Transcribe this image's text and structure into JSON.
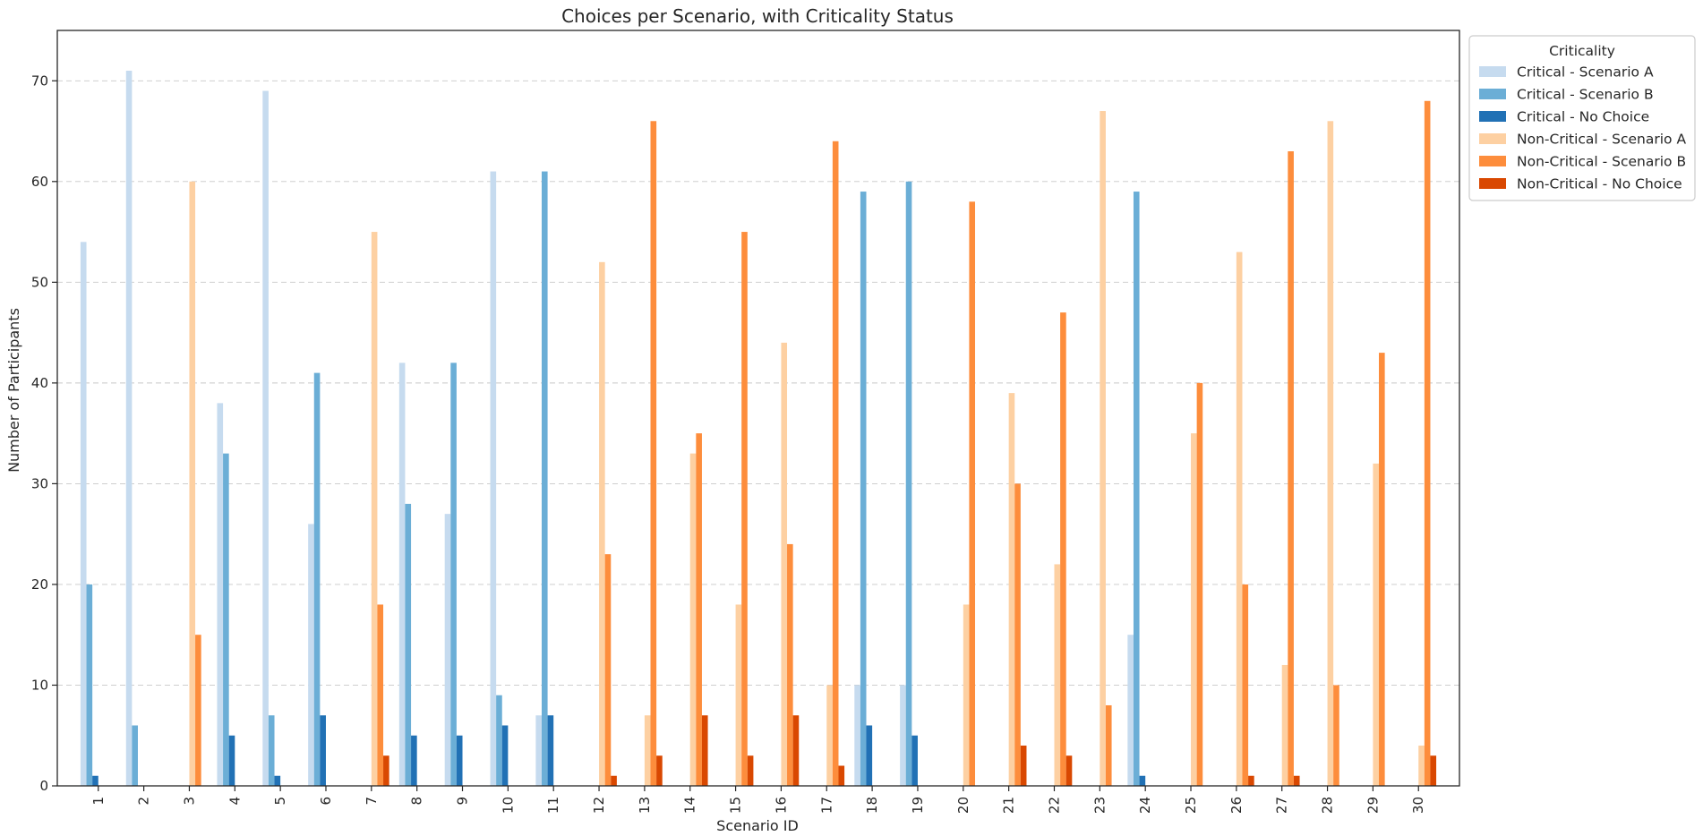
{
  "chart_data": {
    "type": "bar",
    "title": "Choices per Scenario, with Criticality Status",
    "xlabel": "Scenario ID",
    "ylabel": "Number of Participants",
    "ylim": [
      0,
      75
    ],
    "yticks": [
      0,
      10,
      20,
      30,
      40,
      50,
      60,
      70
    ],
    "grid": "y-dashed",
    "legend_title": "Criticality",
    "legend_position": "outside-top-right",
    "categories": [
      "1",
      "2",
      "3",
      "4",
      "5",
      "6",
      "7",
      "8",
      "9",
      "10",
      "11",
      "12",
      "13",
      "14",
      "15",
      "16",
      "17",
      "18",
      "19",
      "20",
      "21",
      "22",
      "23",
      "24",
      "25",
      "26",
      "27",
      "28",
      "29",
      "30"
    ],
    "series": [
      {
        "name": "Critical - Scenario A",
        "color": "#c6dbef",
        "values": [
          54,
          71,
          0,
          38,
          69,
          26,
          0,
          42,
          27,
          61,
          7,
          0,
          0,
          0,
          0,
          0,
          0,
          10,
          10,
          0,
          0,
          0,
          0,
          15,
          0,
          0,
          0,
          0,
          0,
          0
        ]
      },
      {
        "name": "Critical - Scenario B",
        "color": "#6baed6",
        "values": [
          20,
          6,
          0,
          33,
          7,
          41,
          0,
          28,
          42,
          9,
          61,
          0,
          0,
          0,
          0,
          0,
          0,
          59,
          60,
          0,
          0,
          0,
          0,
          59,
          0,
          0,
          0,
          0,
          0,
          0
        ]
      },
      {
        "name": "Critical - No Choice",
        "color": "#2171b5",
        "values": [
          1,
          0,
          0,
          5,
          1,
          7,
          0,
          5,
          5,
          6,
          7,
          0,
          0,
          0,
          0,
          0,
          0,
          6,
          5,
          0,
          0,
          0,
          0,
          1,
          0,
          0,
          0,
          0,
          0,
          0
        ]
      },
      {
        "name": "Non-Critical - Scenario A",
        "color": "#fdd0a2",
        "values": [
          0,
          0,
          60,
          0,
          0,
          0,
          55,
          0,
          0,
          0,
          0,
          52,
          7,
          33,
          18,
          44,
          10,
          0,
          0,
          18,
          39,
          22,
          67,
          0,
          35,
          53,
          12,
          66,
          32,
          4
        ]
      },
      {
        "name": "Non-Critical - Scenario B",
        "color": "#fd8d3c",
        "values": [
          0,
          0,
          15,
          0,
          0,
          0,
          18,
          0,
          0,
          0,
          0,
          23,
          66,
          35,
          55,
          24,
          64,
          0,
          0,
          58,
          30,
          47,
          8,
          0,
          40,
          20,
          63,
          10,
          43,
          68
        ]
      },
      {
        "name": "Non-Critical - No Choice",
        "color": "#d94801",
        "values": [
          0,
          0,
          0,
          0,
          0,
          0,
          3,
          0,
          0,
          0,
          0,
          1,
          3,
          7,
          3,
          7,
          2,
          0,
          0,
          0,
          4,
          3,
          0,
          0,
          0,
          1,
          1,
          0,
          0,
          3
        ]
      }
    ]
  }
}
